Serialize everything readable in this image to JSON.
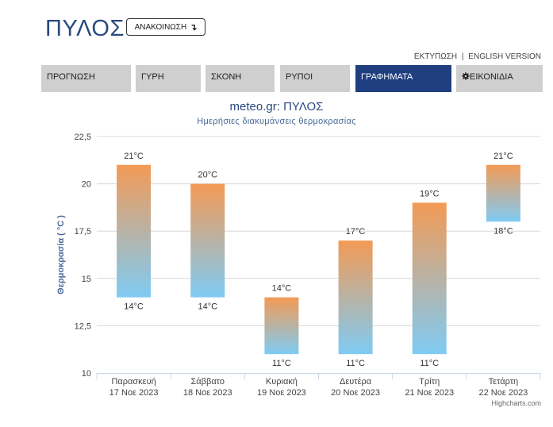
{
  "header": {
    "city": "ΠΥΛΟΣ",
    "announce_label": "ΑΝΑΚΟΙΝΩΣΗ",
    "announce_icon": "↴"
  },
  "top_links": {
    "print": "ΕΚΤΥΠΩΣΗ",
    "separator": "|",
    "english": "ENGLISH VERSION"
  },
  "tabs": [
    {
      "label": "ΠΡΟΓΝΩΣΗ",
      "active": false
    },
    {
      "label": "ΓΥΡΗ",
      "active": false
    },
    {
      "label": "ΣΚΟΝΗ",
      "active": false
    },
    {
      "label": "ΡΥΠΟΙ",
      "active": false
    },
    {
      "label": "ΓΡΑΦΗΜΑΤΑ",
      "active": true
    },
    {
      "label": "ΕΙΚΟΝΙΔΙΑ",
      "active": false,
      "icon": "gear-icon"
    }
  ],
  "credits": "Highcharts.com",
  "colors": {
    "navy": "#1f3f80",
    "tab_gray": "#cfcfcf",
    "bar_top": "#f39a55",
    "bar_bottom": "#7fcbf4",
    "axis_title": "#4a6a99"
  },
  "chart_data": {
    "type": "bar",
    "subtype": "columnrange",
    "title": "meteo.gr: ΠΥΛΟΣ",
    "subtitle": "Ημερήσιες διακυμάνσεις θερμοκρασίας",
    "ylabel": "Θερμοκρασία ( °C )",
    "ylim": [
      10,
      22.5
    ],
    "yticks": [
      "10",
      "12,5",
      "15",
      "17,5",
      "20",
      "22,5"
    ],
    "categories": [
      {
        "day": "Παρασκευή",
        "date": "17 Νοε 2023"
      },
      {
        "day": "Σάββατο",
        "date": "18 Νοε 2023"
      },
      {
        "day": "Κυριακή",
        "date": "19 Νοε 2023"
      },
      {
        "day": "Δευτέρα",
        "date": "20 Νοε 2023"
      },
      {
        "day": "Τρίτη",
        "date": "21 Νοε 2023"
      },
      {
        "day": "Τετάρτη",
        "date": "22 Νοε 2023"
      }
    ],
    "low": [
      14,
      14,
      11,
      11,
      11,
      18
    ],
    "high": [
      21,
      20,
      14,
      17,
      19,
      21
    ],
    "low_labels": [
      "14°C",
      "14°C",
      "11°C",
      "11°C",
      "11°C",
      "18°C"
    ],
    "high_labels": [
      "21°C",
      "20°C",
      "14°C",
      "17°C",
      "19°C",
      "21°C"
    ],
    "grid": true,
    "legend": "none"
  }
}
